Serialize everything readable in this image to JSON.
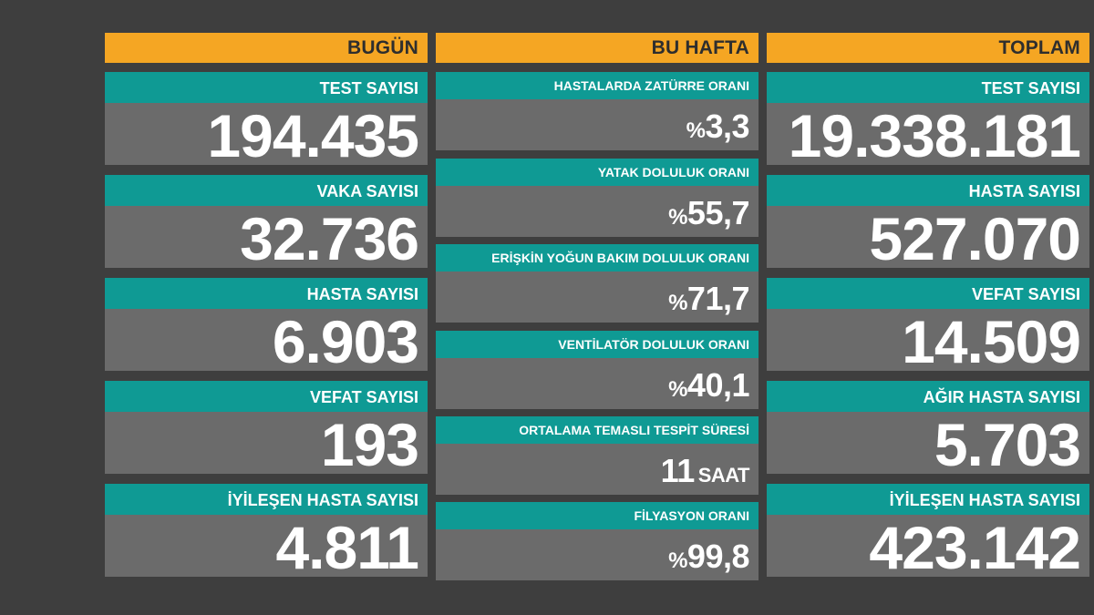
{
  "columns": {
    "today": {
      "header": "BUGÜN",
      "boxes": [
        {
          "label": "TEST SAYISI",
          "value": "194.435"
        },
        {
          "label": "VAKA SAYISI",
          "value": "32.736"
        },
        {
          "label": "HASTA SAYISI",
          "value": "6.903"
        },
        {
          "label": "VEFAT SAYISI",
          "value": "193"
        },
        {
          "label": "İYİLEŞEN HASTA SAYISI",
          "value": "4.811"
        }
      ]
    },
    "week": {
      "header": "BU HAFTA",
      "boxes": [
        {
          "label": "HASTALARDA ZATÜRRE ORANI",
          "prefix": "%",
          "value": "3,3"
        },
        {
          "label": "YATAK DOLULUK ORANI",
          "prefix": "%",
          "value": "55,7"
        },
        {
          "label": "ERİŞKİN YOĞUN BAKIM DOLULUK ORANI",
          "prefix": "%",
          "value": "71,7"
        },
        {
          "label": "VENTİLATÖR DOLULUK ORANI",
          "prefix": "%",
          "value": "40,1"
        },
        {
          "label": "ORTALAMA TEMASLI TESPİT SÜRESİ",
          "value": "11",
          "unit": "SAAT"
        },
        {
          "label": "FİLYASYON ORANI",
          "prefix": "%",
          "value": "99,8"
        }
      ]
    },
    "total": {
      "header": "TOPLAM",
      "boxes": [
        {
          "label": "TEST SAYISI",
          "value": "19.338.181"
        },
        {
          "label": "HASTA SAYISI",
          "value": "527.070"
        },
        {
          "label": "VEFAT SAYISI",
          "value": "14.509"
        },
        {
          "label": "AĞIR HASTA SAYISI",
          "value": "5.703"
        },
        {
          "label": "İYİLEŞEN HASTA SAYISI",
          "value": "423.142"
        }
      ]
    }
  },
  "colors": {
    "background": "#3e3e3e",
    "header": "#f5a623",
    "label": "#0f9a94",
    "value": "#6b6b6b"
  }
}
